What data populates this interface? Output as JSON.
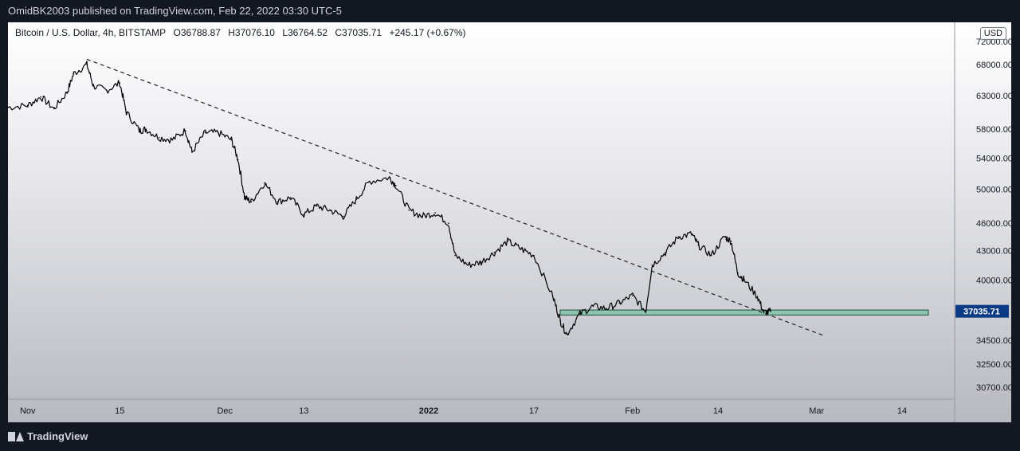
{
  "header": {
    "published": "OmidBK2003 published on TradingView.com, Feb 22, 2022 03:30 UTC-5"
  },
  "legend": {
    "symbol": "Bitcoin / U.S. Dollar, 4h, BITSTAMP",
    "open": "O36788.87",
    "high": "H37076.10",
    "low": "L36764.52",
    "close": "C37035.71",
    "change": "+245.17 (+0.67%)"
  },
  "currency_badge": "USD",
  "price_tag": "37035.71",
  "footer": {
    "brand": "TradingView"
  },
  "colors": {
    "candle": "#000000",
    "trendline": "#222222",
    "support_zone": "#82c3a9",
    "price_tag_bg": "#0c3b85"
  },
  "chart_data": {
    "type": "line",
    "title": "Bitcoin / U.S. Dollar, 4h, BITSTAMP",
    "xlabel": "",
    "ylabel": "",
    "x": [
      "2021-10-29",
      "2021-11-01",
      "2021-11-03",
      "2021-11-05",
      "2021-11-07",
      "2021-11-08",
      "2021-11-10",
      "2021-11-11",
      "2021-11-13",
      "2021-11-15",
      "2021-11-16",
      "2021-11-18",
      "2021-11-19",
      "2021-11-21",
      "2021-11-23",
      "2021-11-25",
      "2021-11-26",
      "2021-11-28",
      "2021-11-30",
      "2021-12-02",
      "2021-12-03",
      "2021-12-04",
      "2021-12-05",
      "2021-12-07",
      "2021-12-09",
      "2021-12-11",
      "2021-12-13",
      "2021-12-15",
      "2021-12-17",
      "2021-12-19",
      "2021-12-21",
      "2021-12-23",
      "2021-12-26",
      "2021-12-27",
      "2021-12-29",
      "2021-12-31",
      "2022-01-02",
      "2022-01-04",
      "2022-01-05",
      "2022-01-07",
      "2022-01-09",
      "2022-01-11",
      "2022-01-13",
      "2022-01-15",
      "2022-01-17",
      "2022-01-20",
      "2022-01-21",
      "2022-01-22",
      "2022-01-24",
      "2022-01-26",
      "2022-01-28",
      "2022-01-30",
      "2022-02-01",
      "2022-02-03",
      "2022-02-04",
      "2022-02-06",
      "2022-02-08",
      "2022-02-10",
      "2022-02-11",
      "2022-02-13",
      "2022-02-15",
      "2022-02-16",
      "2022-02-17",
      "2022-02-18",
      "2022-02-20",
      "2022-02-21",
      "2022-02-22"
    ],
    "series": [
      {
        "values": [
          61200,
          61500,
          62800,
          61000,
          63500,
          66500,
          68000,
          64500,
          63800,
          65000,
          60500,
          57800,
          58000,
          56800,
          56500,
          57800,
          54800,
          57500,
          57500,
          56500,
          53800,
          49000,
          48500,
          50800,
          48500,
          49000,
          47000,
          48000,
          47500,
          46800,
          48800,
          51000,
          51500,
          50500,
          47500,
          46800,
          47200,
          46000,
          42500,
          41500,
          41800,
          42800,
          44000,
          43200,
          42500,
          38200,
          36200,
          35000,
          36800,
          37500,
          37300,
          37800,
          38500,
          37000,
          41500,
          42800,
          44500,
          44800,
          43600,
          42500,
          44500,
          44000,
          40700,
          40000,
          38400,
          36900,
          37035.71
        ]
      }
    ],
    "annotations": [
      {
        "type": "trendline",
        "from": [
          "2021-11-10",
          68900
        ],
        "to": [
          "2022-03-02",
          34900
        ]
      },
      {
        "type": "zone",
        "from_x": "2022-01-21",
        "to_x": "2022-03-18",
        "y_low": 36700,
        "y_high": 37150
      }
    ],
    "ylim": [
      30000,
      74000
    ],
    "xlim": [
      "2021-10-29",
      "2022-03-22"
    ],
    "y_ticks": [
      "72000.00",
      "68000.00",
      "63000.00",
      "58000.00",
      "54000.00",
      "50000.00",
      "46000.00",
      "43000.00",
      "40000.00",
      "34500.00",
      "32500.00",
      "30700.00"
    ],
    "x_ticks": [
      {
        "label": "Nov",
        "date": "2021-11-01"
      },
      {
        "label": "15",
        "date": "2021-11-15"
      },
      {
        "label": "Dec",
        "date": "2021-12-01"
      },
      {
        "label": "13",
        "date": "2021-12-13"
      },
      {
        "label": "2022",
        "date": "2022-01-01"
      },
      {
        "label": "17",
        "date": "2022-01-17"
      },
      {
        "label": "Feb",
        "date": "2022-02-01"
      },
      {
        "label": "14",
        "date": "2022-02-14"
      },
      {
        "label": "Mar",
        "date": "2022-03-01"
      },
      {
        "label": "14",
        "date": "2022-03-14"
      }
    ],
    "y_scale": "log",
    "grid": false
  }
}
